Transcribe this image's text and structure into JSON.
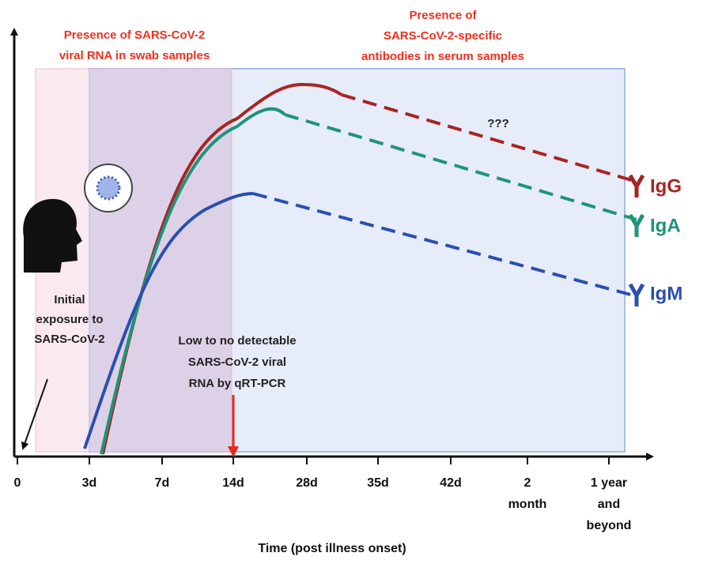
{
  "labels": {
    "rna_presence": [
      "Presence of SARS-CoV-2",
      "viral RNA in swab samples"
    ],
    "antibody_presence": [
      "Presence of",
      "SARS-CoV-2-specific",
      "antibodies in serum samples"
    ],
    "unknown": "???",
    "exposure": [
      "Initial",
      "exposure to",
      "SARS-CoV-2"
    ],
    "low_rna": [
      "Low to no detectable",
      "SARS-CoV-2 viral",
      "RNA by qRT-PCR"
    ]
  },
  "antibodies": [
    "IgG",
    "IgA",
    "IgM"
  ],
  "x_axis": {
    "title": "Time (post illness onset)",
    "ticks": [
      [
        "0"
      ],
      [
        "3d"
      ],
      [
        "7d"
      ],
      [
        "14d"
      ],
      [
        "28d"
      ],
      [
        "35d"
      ],
      [
        "42d"
      ],
      [
        "2",
        "month"
      ],
      [
        "1 year",
        "and",
        "beyond"
      ]
    ]
  }
}
